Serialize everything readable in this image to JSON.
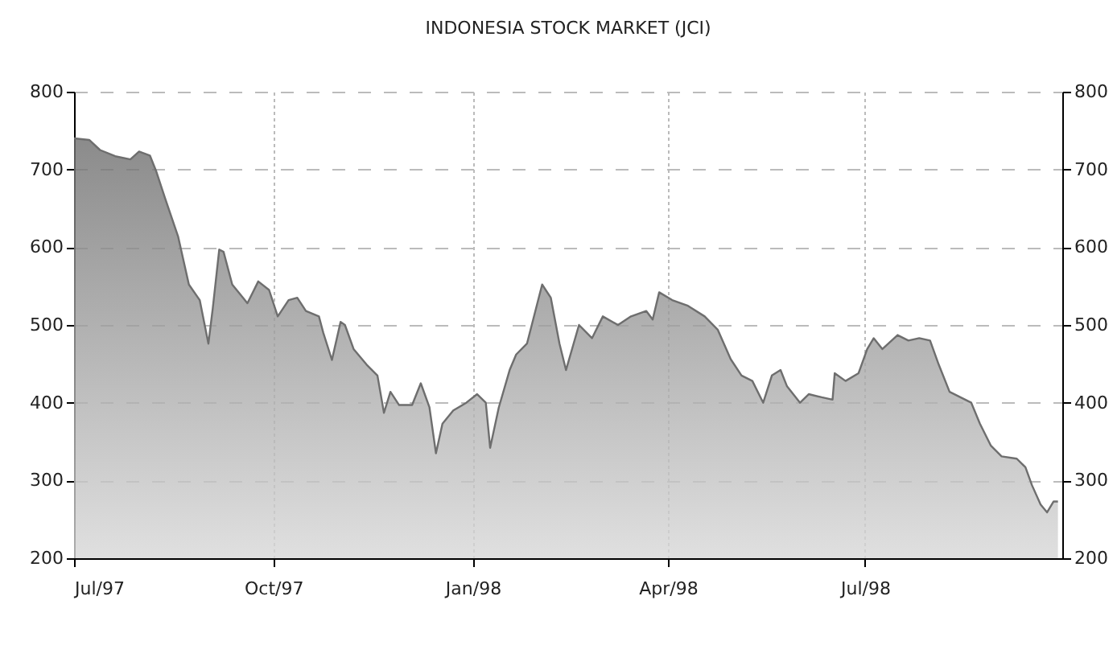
{
  "chart_data": {
    "type": "area",
    "title": "INDONESIA STOCK MARKET (JCI)",
    "x": [
      "1997-07-01",
      "1997-07-08",
      "1997-07-13",
      "1997-07-20",
      "1997-07-27",
      "1997-07-31",
      "1997-08-05",
      "1997-08-08",
      "1997-08-12",
      "1997-08-18",
      "1997-08-23",
      "1997-08-28",
      "1997-09-01",
      "1997-09-03",
      "1997-09-06",
      "1997-09-08",
      "1997-09-12",
      "1997-09-17",
      "1997-09-19",
      "1997-09-24",
      "1997-09-29",
      "1997-10-03",
      "1997-10-08",
      "1997-10-12",
      "1997-10-16",
      "1997-10-22",
      "1997-10-24",
      "1997-10-28",
      "1997-11-01",
      "1997-11-03",
      "1997-11-07",
      "1997-11-13",
      "1997-11-18",
      "1997-11-21",
      "1997-11-24",
      "1997-11-28",
      "1997-12-04",
      "1997-12-08",
      "1997-12-12",
      "1997-12-15",
      "1997-12-18",
      "1997-12-23",
      "1997-12-29",
      "1998-01-03",
      "1998-01-07",
      "1998-01-09",
      "1998-01-13",
      "1998-01-18",
      "1998-01-21",
      "1998-01-26",
      "1998-02-02",
      "1998-02-06",
      "1998-02-10",
      "1998-02-13",
      "1998-02-19",
      "1998-02-25",
      "1998-03-02",
      "1998-03-09",
      "1998-03-15",
      "1998-03-22",
      "1998-03-25",
      "1998-03-28",
      "1998-04-03",
      "1998-04-10",
      "1998-04-18",
      "1998-04-24",
      "1998-04-30",
      "1998-05-05",
      "1998-05-10",
      "1998-05-15",
      "1998-05-19",
      "1998-05-23",
      "1998-05-26",
      "1998-06-01",
      "1998-06-05",
      "1998-06-11",
      "1998-06-16",
      "1998-06-17",
      "1998-06-22",
      "1998-06-28",
      "1998-07-02",
      "1998-07-05",
      "1998-07-09",
      "1998-07-16",
      "1998-07-21",
      "1998-07-26",
      "1998-07-31",
      "1998-08-04",
      "1998-08-09",
      "1998-08-14",
      "1998-08-19",
      "1998-08-23",
      "1998-08-28",
      "1998-09-02",
      "1998-09-09",
      "1998-09-13",
      "1998-09-16",
      "1998-09-20",
      "1998-09-23",
      "1998-09-26",
      "1998-09-28"
    ],
    "series": [
      {
        "color": "#6e6e6e",
        "values": [
          740,
          738,
          725,
          717,
          713,
          723,
          718,
          697,
          663,
          614,
          552,
          532,
          476,
          521,
          597,
          594,
          552,
          535,
          528,
          556,
          545,
          511,
          532,
          535,
          518,
          511,
          490,
          455,
          504,
          500,
          469,
          449,
          435,
          387,
          414,
          397,
          397,
          425,
          394,
          335,
          373,
          390,
          400,
          411,
          400,
          342,
          394,
          442,
          462,
          476,
          552,
          535,
          476,
          442,
          500,
          483,
          511,
          500,
          511,
          518,
          507,
          542,
          532,
          525,
          511,
          494,
          456,
          435,
          428,
          400,
          435,
          442,
          421,
          400,
          411,
          407,
          404,
          438,
          428,
          438,
          469,
          483,
          469,
          487,
          480,
          483,
          480,
          449,
          414,
          407,
          400,
          373,
          345,
          331,
          328,
          317,
          294,
          269,
          259,
          273,
          273
        ]
      }
    ],
    "xlim": [
      "1997-07-01",
      "1998-09-30"
    ],
    "xticks": [
      {
        "value": "1997-07-01",
        "label": "Jul/97"
      },
      {
        "value": "1997-10-01",
        "label": "Oct/97"
      },
      {
        "value": "1998-01-01",
        "label": "Jan/98"
      },
      {
        "value": "1998-04-01",
        "label": "Apr/98"
      },
      {
        "value": "1998-07-01",
        "label": "Jul/98"
      }
    ],
    "ylim": [
      200,
      800
    ],
    "yticks": [
      200,
      300,
      400,
      500,
      600,
      700,
      800
    ],
    "y2lim": [
      200,
      800
    ],
    "y2ticks": [
      200,
      300,
      400,
      500,
      600,
      700,
      800
    ],
    "grid": true
  }
}
